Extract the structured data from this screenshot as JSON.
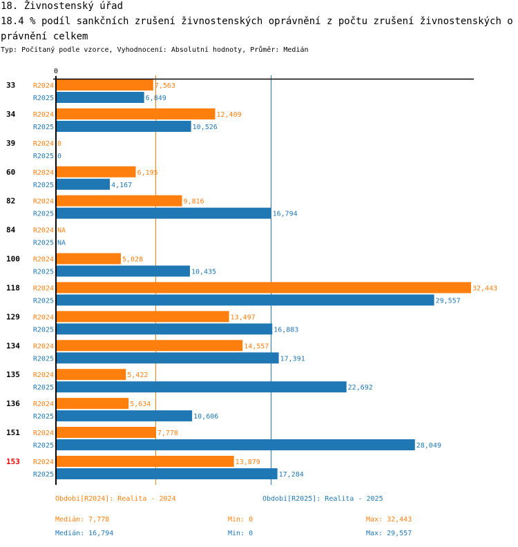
{
  "header": {
    "section_title": "18. Živnostenský úřad",
    "indicator_title": "18.4 % podíl sankčních zrušení živnostenských oprávnění z počtu zrušení živnostenských oprávnění  celkem",
    "subtitle": "Typ: Počítaný podle vzorce, Vyhodnocení: Absolutní hodnoty, Průměr: Medián"
  },
  "colors": {
    "series_2024": "#ff7f0e",
    "series_2025": "#1f77b4",
    "highlight_group": "#ee0000",
    "axis": "#000000"
  },
  "chart_data": {
    "type": "bar",
    "orientation": "horizontal",
    "title": "18.4 % podíl sankčních zrušení živnostenských oprávnění z počtu zrušení živnostenských oprávnění  celkem",
    "xlabel": "",
    "ylabel": "",
    "x_tick_labels": [
      "0"
    ],
    "xlim": [
      0,
      32443
    ],
    "grid": false,
    "categories": [
      "33",
      "34",
      "39",
      "60",
      "82",
      "84",
      "100",
      "118",
      "129",
      "134",
      "135",
      "136",
      "151",
      "153"
    ],
    "highlighted_category": "153",
    "series": [
      {
        "name": "R2024",
        "legend": "Období[R2024]: Realita - 2024",
        "values": [
          7563,
          12409,
          0,
          6195,
          9816,
          null,
          5028,
          32443,
          13497,
          14557,
          5422,
          5634,
          7778,
          13879
        ],
        "labels": [
          "7,563",
          "12,409",
          "0",
          "6,195",
          "9,816",
          "NA",
          "5,028",
          "32,443",
          "13,497",
          "14,557",
          "5,422",
          "5,634",
          "7,778",
          "13,879"
        ],
        "median": 7778
      },
      {
        "name": "R2025",
        "legend": "Období[R2025]: Realita - 2025",
        "values": [
          6849,
          10526,
          0,
          4167,
          16794,
          null,
          10435,
          29557,
          16883,
          17391,
          22692,
          10606,
          28049,
          17284
        ],
        "labels": [
          "6,849",
          "10,526",
          "0",
          "4,167",
          "16,794",
          "NA",
          "10,435",
          "29,557",
          "16,883",
          "17,391",
          "22,692",
          "10,606",
          "28,049",
          "17,284"
        ],
        "median": 16794
      }
    ],
    "reference_lines": [
      {
        "series": "R2024",
        "type": "median",
        "value": 7778
      },
      {
        "series": "R2025",
        "type": "median",
        "value": 16794
      }
    ]
  },
  "legend": {
    "r2024": "Období[R2024]: Realita - 2024",
    "r2025": "Období[R2025]: Realita - 2025"
  },
  "stats": {
    "r2024": {
      "median": "Medián: 7,778",
      "min": "Min: 0",
      "max": "Max: 32,443"
    },
    "r2025": {
      "median": "Medián: 16,794",
      "min": "Min: 0",
      "max": "Max: 29,557"
    }
  }
}
